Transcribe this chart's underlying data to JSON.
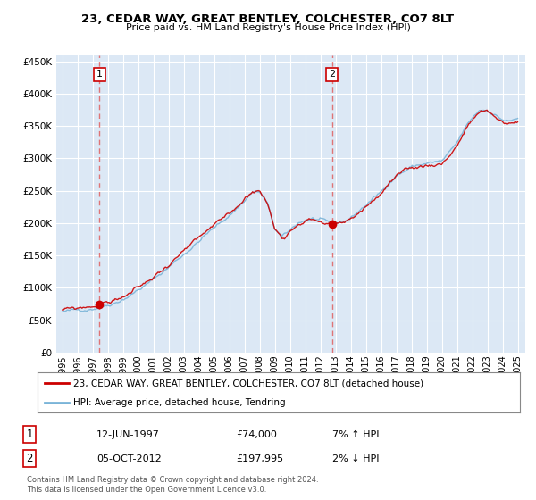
{
  "title": "23, CEDAR WAY, GREAT BENTLEY, COLCHESTER, CO7 8LT",
  "subtitle": "Price paid vs. HM Land Registry's House Price Index (HPI)",
  "ylim": [
    0,
    460000
  ],
  "yticks": [
    0,
    50000,
    100000,
    150000,
    200000,
    250000,
    300000,
    350000,
    400000,
    450000
  ],
  "ytick_labels": [
    "£0",
    "£50K",
    "£100K",
    "£150K",
    "£200K",
    "£250K",
    "£300K",
    "£350K",
    "£400K",
    "£450K"
  ],
  "xtick_years": [
    "1995",
    "1996",
    "1997",
    "1998",
    "1999",
    "2000",
    "2001",
    "2002",
    "2003",
    "2004",
    "2005",
    "2006",
    "2007",
    "2008",
    "2009",
    "2010",
    "2011",
    "2012",
    "2013",
    "2014",
    "2015",
    "2016",
    "2017",
    "2018",
    "2019",
    "2020",
    "2021",
    "2022",
    "2023",
    "2024",
    "2025"
  ],
  "sale1_date": 1997.45,
  "sale1_price": 74000,
  "sale1_label": "1",
  "sale2_date": 2012.76,
  "sale2_price": 197995,
  "sale2_label": "2",
  "hpi_color": "#7ab4d8",
  "price_color": "#cc0000",
  "dashed_color": "#e06060",
  "legend_line1": "23, CEDAR WAY, GREAT BENTLEY, COLCHESTER, CO7 8LT (detached house)",
  "legend_line2": "HPI: Average price, detached house, Tendring",
  "table_row1": [
    "1",
    "12-JUN-1997",
    "£74,000",
    "7% ↑ HPI"
  ],
  "table_row2": [
    "2",
    "05-OCT-2012",
    "£197,995",
    "2% ↓ HPI"
  ],
  "footer": "Contains HM Land Registry data © Crown copyright and database right 2024.\nThis data is licensed under the Open Government Licence v3.0.",
  "bg_color": "#dce8f5"
}
